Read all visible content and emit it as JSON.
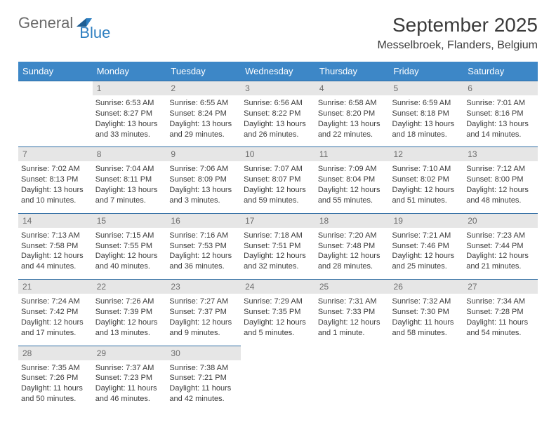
{
  "logo": {
    "word1": "General",
    "word2": "Blue",
    "mark_color": "#2e7fc1"
  },
  "title": "September 2025",
  "location": "Messelbroek, Flanders, Belgium",
  "colors": {
    "header_bg": "#3d87c7",
    "header_text": "#ffffff",
    "row_border": "#2e6ca3",
    "daynum_bg": "#e6e6e6",
    "daynum_text": "#6d6d6d",
    "body_text": "#3b3b3b"
  },
  "day_headers": [
    "Sunday",
    "Monday",
    "Tuesday",
    "Wednesday",
    "Thursday",
    "Friday",
    "Saturday"
  ],
  "weeks": [
    {
      "nums": [
        "",
        "1",
        "2",
        "3",
        "4",
        "5",
        "6"
      ],
      "cells": [
        {
          "sunrise": "",
          "sunset": "",
          "daylight1": "",
          "daylight2": ""
        },
        {
          "sunrise": "Sunrise: 6:53 AM",
          "sunset": "Sunset: 8:27 PM",
          "daylight1": "Daylight: 13 hours",
          "daylight2": "and 33 minutes."
        },
        {
          "sunrise": "Sunrise: 6:55 AM",
          "sunset": "Sunset: 8:24 PM",
          "daylight1": "Daylight: 13 hours",
          "daylight2": "and 29 minutes."
        },
        {
          "sunrise": "Sunrise: 6:56 AM",
          "sunset": "Sunset: 8:22 PM",
          "daylight1": "Daylight: 13 hours",
          "daylight2": "and 26 minutes."
        },
        {
          "sunrise": "Sunrise: 6:58 AM",
          "sunset": "Sunset: 8:20 PM",
          "daylight1": "Daylight: 13 hours",
          "daylight2": "and 22 minutes."
        },
        {
          "sunrise": "Sunrise: 6:59 AM",
          "sunset": "Sunset: 8:18 PM",
          "daylight1": "Daylight: 13 hours",
          "daylight2": "and 18 minutes."
        },
        {
          "sunrise": "Sunrise: 7:01 AM",
          "sunset": "Sunset: 8:16 PM",
          "daylight1": "Daylight: 13 hours",
          "daylight2": "and 14 minutes."
        }
      ]
    },
    {
      "nums": [
        "7",
        "8",
        "9",
        "10",
        "11",
        "12",
        "13"
      ],
      "cells": [
        {
          "sunrise": "Sunrise: 7:02 AM",
          "sunset": "Sunset: 8:13 PM",
          "daylight1": "Daylight: 13 hours",
          "daylight2": "and 10 minutes."
        },
        {
          "sunrise": "Sunrise: 7:04 AM",
          "sunset": "Sunset: 8:11 PM",
          "daylight1": "Daylight: 13 hours",
          "daylight2": "and 7 minutes."
        },
        {
          "sunrise": "Sunrise: 7:06 AM",
          "sunset": "Sunset: 8:09 PM",
          "daylight1": "Daylight: 13 hours",
          "daylight2": "and 3 minutes."
        },
        {
          "sunrise": "Sunrise: 7:07 AM",
          "sunset": "Sunset: 8:07 PM",
          "daylight1": "Daylight: 12 hours",
          "daylight2": "and 59 minutes."
        },
        {
          "sunrise": "Sunrise: 7:09 AM",
          "sunset": "Sunset: 8:04 PM",
          "daylight1": "Daylight: 12 hours",
          "daylight2": "and 55 minutes."
        },
        {
          "sunrise": "Sunrise: 7:10 AM",
          "sunset": "Sunset: 8:02 PM",
          "daylight1": "Daylight: 12 hours",
          "daylight2": "and 51 minutes."
        },
        {
          "sunrise": "Sunrise: 7:12 AM",
          "sunset": "Sunset: 8:00 PM",
          "daylight1": "Daylight: 12 hours",
          "daylight2": "and 48 minutes."
        }
      ]
    },
    {
      "nums": [
        "14",
        "15",
        "16",
        "17",
        "18",
        "19",
        "20"
      ],
      "cells": [
        {
          "sunrise": "Sunrise: 7:13 AM",
          "sunset": "Sunset: 7:58 PM",
          "daylight1": "Daylight: 12 hours",
          "daylight2": "and 44 minutes."
        },
        {
          "sunrise": "Sunrise: 7:15 AM",
          "sunset": "Sunset: 7:55 PM",
          "daylight1": "Daylight: 12 hours",
          "daylight2": "and 40 minutes."
        },
        {
          "sunrise": "Sunrise: 7:16 AM",
          "sunset": "Sunset: 7:53 PM",
          "daylight1": "Daylight: 12 hours",
          "daylight2": "and 36 minutes."
        },
        {
          "sunrise": "Sunrise: 7:18 AM",
          "sunset": "Sunset: 7:51 PM",
          "daylight1": "Daylight: 12 hours",
          "daylight2": "and 32 minutes."
        },
        {
          "sunrise": "Sunrise: 7:20 AM",
          "sunset": "Sunset: 7:48 PM",
          "daylight1": "Daylight: 12 hours",
          "daylight2": "and 28 minutes."
        },
        {
          "sunrise": "Sunrise: 7:21 AM",
          "sunset": "Sunset: 7:46 PM",
          "daylight1": "Daylight: 12 hours",
          "daylight2": "and 25 minutes."
        },
        {
          "sunrise": "Sunrise: 7:23 AM",
          "sunset": "Sunset: 7:44 PM",
          "daylight1": "Daylight: 12 hours",
          "daylight2": "and 21 minutes."
        }
      ]
    },
    {
      "nums": [
        "21",
        "22",
        "23",
        "24",
        "25",
        "26",
        "27"
      ],
      "cells": [
        {
          "sunrise": "Sunrise: 7:24 AM",
          "sunset": "Sunset: 7:42 PM",
          "daylight1": "Daylight: 12 hours",
          "daylight2": "and 17 minutes."
        },
        {
          "sunrise": "Sunrise: 7:26 AM",
          "sunset": "Sunset: 7:39 PM",
          "daylight1": "Daylight: 12 hours",
          "daylight2": "and 13 minutes."
        },
        {
          "sunrise": "Sunrise: 7:27 AM",
          "sunset": "Sunset: 7:37 PM",
          "daylight1": "Daylight: 12 hours",
          "daylight2": "and 9 minutes."
        },
        {
          "sunrise": "Sunrise: 7:29 AM",
          "sunset": "Sunset: 7:35 PM",
          "daylight1": "Daylight: 12 hours",
          "daylight2": "and 5 minutes."
        },
        {
          "sunrise": "Sunrise: 7:31 AM",
          "sunset": "Sunset: 7:33 PM",
          "daylight1": "Daylight: 12 hours",
          "daylight2": "and 1 minute."
        },
        {
          "sunrise": "Sunrise: 7:32 AM",
          "sunset": "Sunset: 7:30 PM",
          "daylight1": "Daylight: 11 hours",
          "daylight2": "and 58 minutes."
        },
        {
          "sunrise": "Sunrise: 7:34 AM",
          "sunset": "Sunset: 7:28 PM",
          "daylight1": "Daylight: 11 hours",
          "daylight2": "and 54 minutes."
        }
      ]
    },
    {
      "nums": [
        "28",
        "29",
        "30",
        "",
        "",
        "",
        ""
      ],
      "cells": [
        {
          "sunrise": "Sunrise: 7:35 AM",
          "sunset": "Sunset: 7:26 PM",
          "daylight1": "Daylight: 11 hours",
          "daylight2": "and 50 minutes."
        },
        {
          "sunrise": "Sunrise: 7:37 AM",
          "sunset": "Sunset: 7:23 PM",
          "daylight1": "Daylight: 11 hours",
          "daylight2": "and 46 minutes."
        },
        {
          "sunrise": "Sunrise: 7:38 AM",
          "sunset": "Sunset: 7:21 PM",
          "daylight1": "Daylight: 11 hours",
          "daylight2": "and 42 minutes."
        },
        {
          "sunrise": "",
          "sunset": "",
          "daylight1": "",
          "daylight2": ""
        },
        {
          "sunrise": "",
          "sunset": "",
          "daylight1": "",
          "daylight2": ""
        },
        {
          "sunrise": "",
          "sunset": "",
          "daylight1": "",
          "daylight2": ""
        },
        {
          "sunrise": "",
          "sunset": "",
          "daylight1": "",
          "daylight2": ""
        }
      ]
    }
  ]
}
